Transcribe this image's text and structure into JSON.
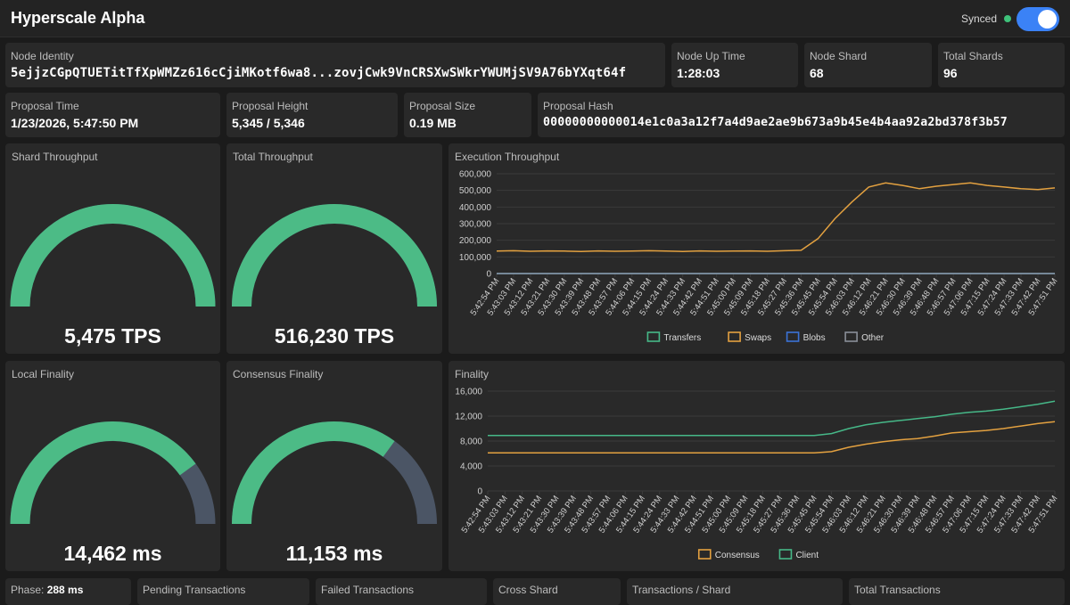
{
  "header": {
    "title": "Hyperscale Alpha",
    "sync_status": "Synced"
  },
  "colors": {
    "accent": "#3b82f6",
    "synced": "#3ec27a",
    "gauge_fill": "#4cbb86",
    "gauge_track": "#4b5565",
    "transfers": "#46b888",
    "swaps": "#e3a140",
    "blobs": "#3b72d6",
    "other": "#8a8f98",
    "consensus": "#e3a140",
    "client": "#46b888"
  },
  "stats_row1": [
    {
      "label": "Node Identity",
      "value": "5ejjzCGpQTUETitTfXpWMZz616cCjiMKotf6wa8...zovjCwk9VnCRSXwSWkrYWUMjSV9A76bYXqt64f"
    },
    {
      "label": "Node Up Time",
      "value": "1:28:03"
    },
    {
      "label": "Node Shard",
      "value": "68"
    },
    {
      "label": "Total Shards",
      "value": "96"
    }
  ],
  "stats_row2": [
    {
      "label": "Proposal Time",
      "value": "1/23/2026, 5:47:50 PM"
    },
    {
      "label": "Proposal Height",
      "value": "5,345 / 5,346"
    },
    {
      "label": "Proposal Size",
      "value": "0.19 MB"
    },
    {
      "label": "Proposal Hash",
      "value": "00000000000014e1c0a3a12f7a4d9ae2ae9b673a9b45e4b4aa92a2bd378f3b57"
    }
  ],
  "gauges": [
    {
      "title": "Shard Throughput",
      "value_text": "5,475 TPS",
      "fraction": 1.0
    },
    {
      "title": "Total Throughput",
      "value_text": "516,230 TPS",
      "fraction": 1.0
    },
    {
      "title": "Local Finality",
      "value_text": "14,462 ms",
      "fraction": 0.8
    },
    {
      "title": "Consensus Finality",
      "value_text": "11,153 ms",
      "fraction": 0.7
    }
  ],
  "bottom_stats": [
    {
      "label": "Phase:",
      "value": "288 ms"
    },
    {
      "label": "Pending Transactions"
    },
    {
      "label": "Failed Transactions"
    },
    {
      "label": "Cross Shard"
    },
    {
      "label": "Transactions / Shard"
    },
    {
      "label": "Total Transactions"
    }
  ],
  "chart_data": [
    {
      "type": "line",
      "title": "Execution Throughput",
      "x": [
        "5:42:54 PM",
        "5:43:03 PM",
        "5:43:12 PM",
        "5:43:21 PM",
        "5:43:30 PM",
        "5:43:39 PM",
        "5:43:48 PM",
        "5:43:57 PM",
        "5:44:06 PM",
        "5:44:15 PM",
        "5:44:24 PM",
        "5:44:33 PM",
        "5:44:42 PM",
        "5:44:51 PM",
        "5:45:00 PM",
        "5:45:09 PM",
        "5:45:18 PM",
        "5:45:27 PM",
        "5:45:36 PM",
        "5:45:45 PM",
        "5:45:54 PM",
        "5:46:03 PM",
        "5:46:12 PM",
        "5:46:21 PM",
        "5:46:30 PM",
        "5:46:39 PM",
        "5:46:48 PM",
        "5:46:57 PM",
        "5:47:06 PM",
        "5:47:15 PM",
        "5:47:24 PM",
        "5:47:33 PM",
        "5:47:42 PM",
        "5:47:51 PM"
      ],
      "yticks": [
        "0",
        "100,000",
        "200,000",
        "300,000",
        "400,000",
        "500,000",
        "600,000"
      ],
      "ylim": [
        0,
        600000
      ],
      "series": [
        {
          "name": "Transfers",
          "values": [
            0,
            0,
            0,
            0,
            0,
            0,
            0,
            0,
            0,
            0,
            0,
            0,
            0,
            0,
            0,
            0,
            0,
            0,
            0,
            0,
            0,
            0,
            0,
            0,
            0,
            0,
            0,
            0,
            0,
            0,
            0,
            0,
            0,
            0
          ]
        },
        {
          "name": "Swaps",
          "values": [
            135000,
            137000,
            134000,
            136000,
            135000,
            133000,
            136000,
            134000,
            135000,
            137000,
            135000,
            133000,
            136000,
            134000,
            135000,
            136000,
            134000,
            137000,
            140000,
            210000,
            330000,
            430000,
            520000,
            545000,
            530000,
            510000,
            525000,
            535000,
            545000,
            530000,
            520000,
            510000,
            505000,
            515000
          ]
        },
        {
          "name": "Blobs",
          "values": [
            0,
            0,
            0,
            0,
            0,
            0,
            0,
            0,
            0,
            0,
            0,
            0,
            0,
            0,
            0,
            0,
            0,
            0,
            0,
            0,
            0,
            0,
            0,
            0,
            0,
            0,
            0,
            0,
            0,
            0,
            0,
            0,
            0,
            0
          ]
        },
        {
          "name": "Other",
          "values": [
            0,
            0,
            0,
            0,
            0,
            0,
            0,
            0,
            0,
            0,
            0,
            0,
            0,
            0,
            0,
            0,
            0,
            0,
            0,
            0,
            0,
            0,
            0,
            0,
            0,
            0,
            0,
            0,
            0,
            0,
            0,
            0,
            0,
            0
          ]
        }
      ],
      "legend": "bottom"
    },
    {
      "type": "line",
      "title": "Finality",
      "x": [
        "5:42:54 PM",
        "5:43:03 PM",
        "5:43:12 PM",
        "5:43:21 PM",
        "5:43:30 PM",
        "5:43:39 PM",
        "5:43:48 PM",
        "5:43:57 PM",
        "5:44:06 PM",
        "5:44:15 PM",
        "5:44:24 PM",
        "5:44:33 PM",
        "5:44:42 PM",
        "5:44:51 PM",
        "5:45:00 PM",
        "5:45:09 PM",
        "5:45:18 PM",
        "5:45:27 PM",
        "5:45:36 PM",
        "5:45:45 PM",
        "5:45:54 PM",
        "5:46:03 PM",
        "5:46:12 PM",
        "5:46:21 PM",
        "5:46:30 PM",
        "5:46:39 PM",
        "5:46:48 PM",
        "5:46:57 PM",
        "5:47:06 PM",
        "5:47:15 PM",
        "5:47:24 PM",
        "5:47:33 PM",
        "5:47:42 PM",
        "5:47:51 PM"
      ],
      "yticks": [
        "0",
        "4,000",
        "8,000",
        "12,000",
        "16,000"
      ],
      "ylim": [
        0,
        16000
      ],
      "series": [
        {
          "name": "Consensus",
          "values": [
            6100,
            6100,
            6100,
            6100,
            6100,
            6100,
            6100,
            6100,
            6100,
            6100,
            6100,
            6100,
            6100,
            6100,
            6100,
            6100,
            6100,
            6100,
            6100,
            6100,
            6300,
            7000,
            7500,
            7900,
            8200,
            8400,
            8800,
            9300,
            9500,
            9700,
            10000,
            10400,
            10800,
            11100
          ]
        },
        {
          "name": "Client",
          "values": [
            8900,
            8900,
            8900,
            8900,
            8900,
            8900,
            8900,
            8900,
            8900,
            8900,
            8900,
            8900,
            8900,
            8900,
            8900,
            8900,
            8900,
            8900,
            8900,
            8900,
            9200,
            10000,
            10600,
            11000,
            11300,
            11600,
            11900,
            12300,
            12600,
            12800,
            13100,
            13500,
            13900,
            14400
          ]
        }
      ],
      "legend": "bottom"
    }
  ]
}
